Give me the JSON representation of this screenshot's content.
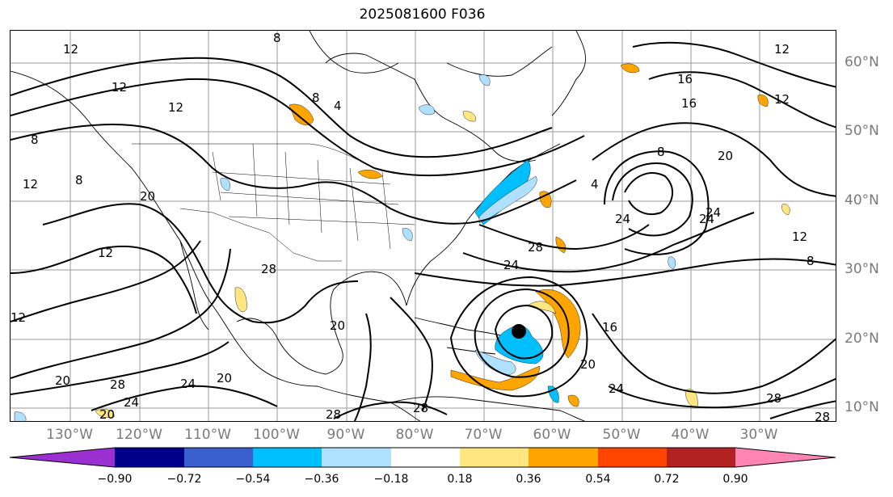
{
  "title": "2025081600 F036",
  "lon_labels": [
    "130°W",
    "120°W",
    "110°W",
    "100°W",
    "90°W",
    "80°W",
    "70°W",
    "60°W",
    "50°W",
    "40°W",
    "30°W"
  ],
  "lat_labels": [
    "60°N",
    "50°N",
    "40°N",
    "30°N",
    "20°N",
    "10°N"
  ],
  "colorbar": {
    "ticks": [
      "−0.90",
      "−0.72",
      "−0.54",
      "−0.36",
      "−0.18",
      "0.18",
      "0.36",
      "0.54",
      "0.72",
      "0.90"
    ],
    "colors": [
      "#9b30d0",
      "#00008b",
      "#3a5fcd",
      "#00bfff",
      "#b0e0ff",
      "#ffffff",
      "#ffe680",
      "#ffa500",
      "#ff4500",
      "#b22222",
      "#ff85b5"
    ]
  },
  "contour_labels": [
    "12",
    "8",
    "12",
    "12",
    "8",
    "12",
    "8",
    "4",
    "8",
    "12",
    "16",
    "12",
    "20",
    "16",
    "8",
    "4",
    "24",
    "24",
    "12",
    "8",
    "12",
    "20",
    "20",
    "28",
    "28",
    "20",
    "20",
    "12",
    "24",
    "24",
    "24",
    "28",
    "20",
    "28",
    "16",
    "20",
    "24",
    "24",
    "28",
    "28",
    "28"
  ],
  "storm_marker": "tropical-cyclone-center"
}
